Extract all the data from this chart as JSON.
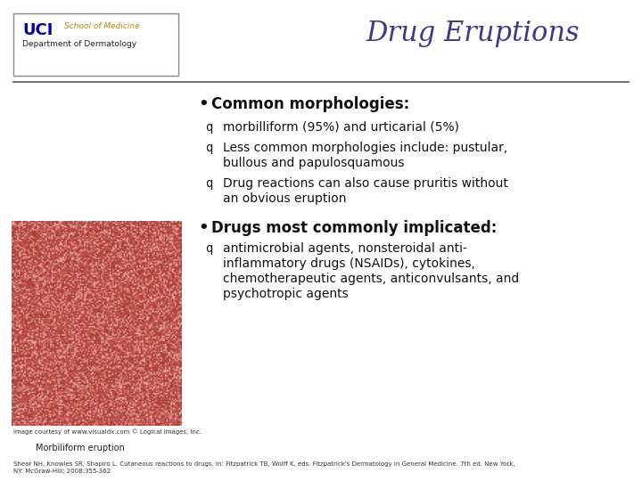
{
  "title": "Drug Eruptions",
  "title_color": "#3b3b8c",
  "title_fontsize": 22,
  "bg_color": "#ffffff",
  "uci_text_uci": "UCI",
  "uci_text_som": "School of Medicine",
  "uci_text_dept": "Department of Dermatology",
  "bullet1_header": "Common morphologies:",
  "bullet1_items": [
    "morbilliform (95%) and urticarial (5%)",
    "Less common morphologies include: pustular,\nbullous and papulosquamous",
    "Drug reactions can also cause pruritis without\nan obvious eruption"
  ],
  "bullet2_header": "Drugs most commonly implicated:",
  "bullet2_items": [
    "antimicrobial agents, nonsteroidal anti-\ninflammatory drugs (NSAIDs), cytokines,\nchemotherapeutic agents, anticonvulsants, and\npsychotropic agents"
  ],
  "caption1": "Image courtesy of www.visualdx.com © Logical Images, Inc.",
  "caption2": "Morbiliform eruption",
  "footer": "Shear NH, Knowles SR, Shapiro L. Cutaneous reactions to drugs. In: Fitzpatrick TB, Wolff K, eds. Fitzpatrick's Dermatology in General Medicine. 7th ed. New York,\nNY: McGraw-Hill; 2008:355-362"
}
